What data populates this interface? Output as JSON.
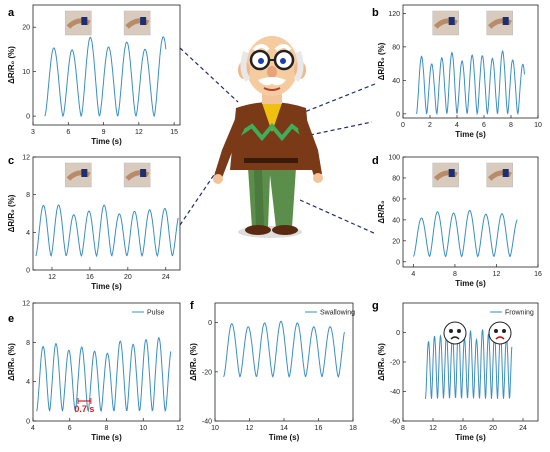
{
  "line_color": "#3a8fc4",
  "chart_data": [
    {
      "id": "a",
      "type": "line",
      "panel_label": "a",
      "xlabel": "Time (s)",
      "ylabel": "ΔR/R₀ (%)",
      "xlim": [
        3,
        15.5
      ],
      "ylim": [
        -2,
        25
      ],
      "xticks": [
        3,
        6,
        9,
        12,
        15
      ],
      "yticks": [
        0,
        10,
        20
      ],
      "start": 4,
      "end": 14.3,
      "period": 1.55,
      "amp": [
        0,
        18
      ],
      "n_peaks": 7,
      "photos": 2
    },
    {
      "id": "b",
      "type": "line",
      "panel_label": "b",
      "xlabel": "Time (s)",
      "ylabel": "ΔR/R₀ (%)",
      "xlim": [
        0,
        10
      ],
      "ylim": [
        -5,
        130
      ],
      "xticks": [
        0,
        2,
        4,
        6,
        8,
        10
      ],
      "yticks": [
        0,
        40,
        80,
        120
      ],
      "start": 1,
      "end": 9,
      "period": 0.75,
      "amp": [
        0,
        75
      ],
      "n_peaks": 10,
      "photos": 2
    },
    {
      "id": "c",
      "type": "line",
      "panel_label": "c",
      "xlabel": "Time (s)",
      "ylabel": "ΔR/R₀ (%)",
      "xlim": [
        10,
        25.5
      ],
      "ylim": [
        0,
        12
      ],
      "xticks": [
        12,
        16,
        20,
        24
      ],
      "yticks": [
        0,
        4,
        8,
        12
      ],
      "start": 10.3,
      "end": 25.3,
      "period": 1.6,
      "amp": [
        1.5,
        7
      ],
      "n_peaks": 9,
      "photos": 2
    },
    {
      "id": "d",
      "type": "line",
      "panel_label": "d",
      "xlabel": "Time (s)",
      "ylabel": "ΔR/R₀",
      "xlim": [
        3,
        16
      ],
      "ylim": [
        -5,
        100
      ],
      "xticks": [
        4,
        8,
        12,
        16
      ],
      "yticks": [
        0,
        20,
        40,
        60,
        80,
        100
      ],
      "start": 4,
      "end": 14,
      "period": 1.55,
      "amp": [
        5,
        50
      ],
      "n_peaks": 6,
      "photos": 2
    },
    {
      "id": "e",
      "type": "line",
      "panel_label": "e",
      "xlabel": "Time (s)",
      "ylabel": "ΔR/R₀ (%)",
      "legend": "Pulse",
      "annotation": "0.7 s",
      "xlim": [
        4,
        12
      ],
      "ylim": [
        0,
        12
      ],
      "xticks": [
        4,
        6,
        8,
        10,
        12
      ],
      "yticks": [
        0,
        4,
        8,
        12
      ],
      "start": 4.2,
      "end": 11.5,
      "period": 0.7,
      "amp": [
        1,
        8.5
      ],
      "n_peaks": 11,
      "photos": 0
    },
    {
      "id": "f",
      "type": "line",
      "panel_label": "f",
      "xlabel": "Time (s)",
      "ylabel": "ΔR/R₀ (%)",
      "legend": "Swallowing",
      "xlim": [
        10,
        18
      ],
      "ylim": [
        -40,
        8
      ],
      "xticks": [
        10,
        12,
        14,
        16,
        18
      ],
      "yticks": [
        -40,
        -20,
        0
      ],
      "start": 10.5,
      "end": 17.5,
      "period": 0.95,
      "amp": [
        -22,
        1
      ],
      "n_peaks": 8,
      "photos": 0
    },
    {
      "id": "g",
      "type": "line",
      "panel_label": "g",
      "xlabel": "Time (s)",
      "ylabel": "ΔR/R₀ (%)",
      "legend": "Frowning",
      "xlim": [
        8,
        26
      ],
      "ylim": [
        -60,
        20
      ],
      "xticks": [
        8,
        12,
        16,
        20,
        24
      ],
      "yticks": [
        -60,
        -40,
        -20,
        0
      ],
      "start": 11,
      "end": 22.5,
      "period": 0.8,
      "amp": [
        -45,
        5
      ],
      "n_peaks": 14,
      "photos": 0
    }
  ]
}
